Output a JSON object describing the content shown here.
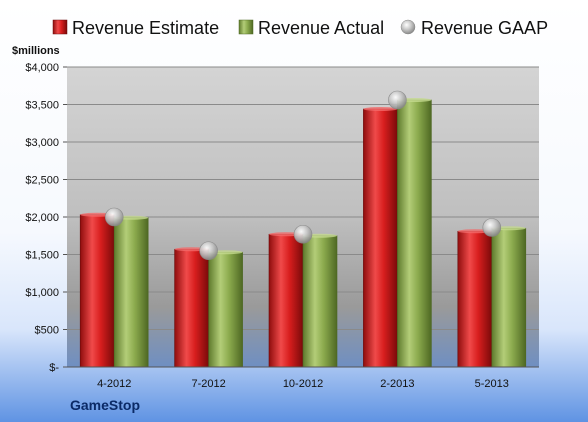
{
  "chart_data": {
    "type": "bar",
    "unit_label": "$millions",
    "company": "GameStop",
    "categories": [
      "4-2012",
      "7-2012",
      "10-2012",
      "2-2013",
      "5-2013"
    ],
    "series": [
      {
        "name": "Revenue Estimate",
        "kind": "bar",
        "color": "#d81e1e",
        "values": [
          2030,
          1570,
          1770,
          3440,
          1810
        ]
      },
      {
        "name": "Revenue Actual",
        "kind": "bar",
        "color": "#8cab4e",
        "values": [
          1990,
          1530,
          1750,
          3560,
          1850
        ]
      },
      {
        "name": "Revenue GAAP",
        "kind": "marker",
        "color": "#b8b8b8",
        "values": [
          2000,
          1550,
          1770,
          3560,
          1860
        ]
      }
    ],
    "y_ticks": [
      "$-",
      "$500",
      "$1,000",
      "$1,500",
      "$2,000",
      "$2,500",
      "$3,000",
      "$3,500",
      "$4,000"
    ],
    "y_tick_values": [
      0,
      500,
      1000,
      1500,
      2000,
      2500,
      3000,
      3500,
      4000
    ],
    "ylim": [
      0,
      4000
    ],
    "grid": true,
    "legend_position": "top"
  }
}
